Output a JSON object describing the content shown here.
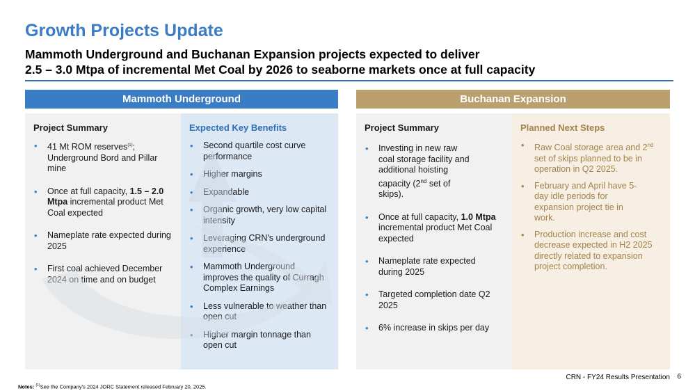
{
  "title": "Growth Projects Update",
  "subtitle_line1": "Mammoth Underground and Buchanan Expansion projects expected to deliver",
  "subtitle_line2": "2.5 – 3.0 Mtpa of incremental Met Coal by 2026 to seaborne markets once at full capacity",
  "colors": {
    "blue": "#3b7dc4",
    "gold": "#b9a06e",
    "gold_text": "#a3824a"
  },
  "mammoth": {
    "header": "Mammoth Underground",
    "summary": {
      "title": "Project Summary",
      "items": [
        {
          "pre": "41 Mt ROM reserves",
          "sup": "(1)",
          "post": "; Underground Bord and Pillar mine"
        },
        {
          "pre": "Once at full capacity, ",
          "bold": "1.5 – 2.0 Mtpa",
          "post": " incremental product Met Coal expected"
        },
        {
          "pre": "Nameplate rate expected during 2025"
        },
        {
          "pre": "First coal achieved December 2024 on time and on budget"
        }
      ]
    },
    "benefits": {
      "title": "Expected Key Benefits",
      "items": [
        "Second quartile cost curve performance",
        "Higher margins",
        "Expandable",
        "Organic growth, very low capital intensity",
        "Leveraging CRN's underground experience",
        "Mammoth Underground improves the quality of Curragh Complex Earnings",
        "Less vulnerable to weather than open cut",
        "Higher margin tonnage than open cut"
      ]
    }
  },
  "buchanan": {
    "header": "Buchanan Expansion",
    "summary": {
      "title": "Project Summary",
      "items": [
        {
          "pre": "Investing in new raw coal storage facility and additional hoisting capacity (2",
          "sup": "nd",
          "post": " set of skips)."
        },
        {
          "pre": "Once at full capacity, ",
          "bold": "1.0 Mtpa",
          "post": " incremental product Met Coal expected"
        },
        {
          "pre": "Nameplate rate expected during 2025"
        },
        {
          "pre": "Targeted completion date Q2 2025"
        },
        {
          "pre": "6% increase in skips per day"
        }
      ]
    },
    "next_steps": {
      "title": "Planned Next Steps",
      "items": [
        {
          "pre": "Raw Coal storage area and 2",
          "sup": "nd",
          "post": " set of skips planned to be in operation in Q2 2025."
        },
        {
          "pre": "February and April have 5-day idle periods for expansion project tie in work."
        },
        {
          "pre": "Production increase and cost decrease expected in H2 2025 directly related to expansion project completion."
        }
      ]
    }
  },
  "footer": "CRN - FY24 Results Presentation",
  "page_number": "6",
  "notes": {
    "label": "Notes",
    "sup": "(1)",
    "text": "See the Company's 2024 JORC Statement released February 20, 2025."
  }
}
